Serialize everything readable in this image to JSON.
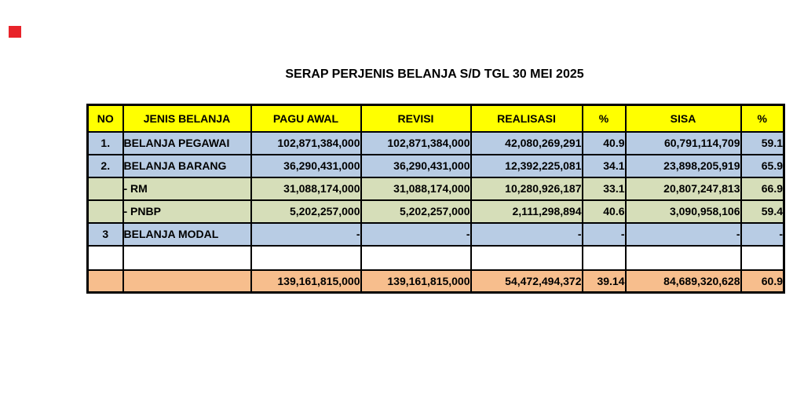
{
  "page": {
    "title": "SERAP PERJENIS BELANJA S/D TGL 30 MEI 2025",
    "background": "#FFFFFF"
  },
  "marker": {
    "color": "#E8232A"
  },
  "table": {
    "columns": [
      "NO",
      "JENIS BELANJA",
      "PAGU AWAL",
      "REVISI",
      "REALISASI",
      "%",
      "SISA",
      "%"
    ],
    "header_bg": "#FFFF00",
    "border_color": "#000000",
    "row_colors": {
      "blue": "#B8CCE4",
      "green": "#D6DEB9",
      "white": "#FFFFFF",
      "total": "#F7BE8D"
    },
    "rows": [
      {
        "style": "blue",
        "cells": [
          "1.",
          "BELANJA PEGAWAI",
          "102,871,384,000",
          "102,871,384,000",
          "42,080,269,291",
          "40.9",
          "60,791,114,709",
          "59.1"
        ]
      },
      {
        "style": "blue",
        "cells": [
          "2.",
          "BELANJA BARANG",
          "36,290,431,000",
          "36,290,431,000",
          "12,392,225,081",
          "34.1",
          "23,898,205,919",
          "65.9"
        ]
      },
      {
        "style": "green",
        "cells": [
          "",
          "- RM",
          "31,088,174,000",
          "31,088,174,000",
          "10,280,926,187",
          "33.1",
          "20,807,247,813",
          "66.9"
        ]
      },
      {
        "style": "green",
        "cells": [
          "",
          "- PNBP",
          "5,202,257,000",
          "5,202,257,000",
          "2,111,298,894",
          "40.6",
          "3,090,958,106",
          "59.4"
        ]
      },
      {
        "style": "blue",
        "cells": [
          "3",
          "BELANJA MODAL",
          "-",
          "-",
          "-",
          "-",
          "-",
          "-"
        ]
      },
      {
        "style": "white",
        "cells": [
          "",
          "",
          "",
          "",
          "",
          "",
          "",
          ""
        ]
      },
      {
        "style": "total",
        "cells": [
          "",
          "",
          "139,161,815,000",
          "139,161,815,000",
          "54,472,494,372",
          "39.14",
          "84,689,320,628",
          "60.9"
        ]
      }
    ]
  }
}
